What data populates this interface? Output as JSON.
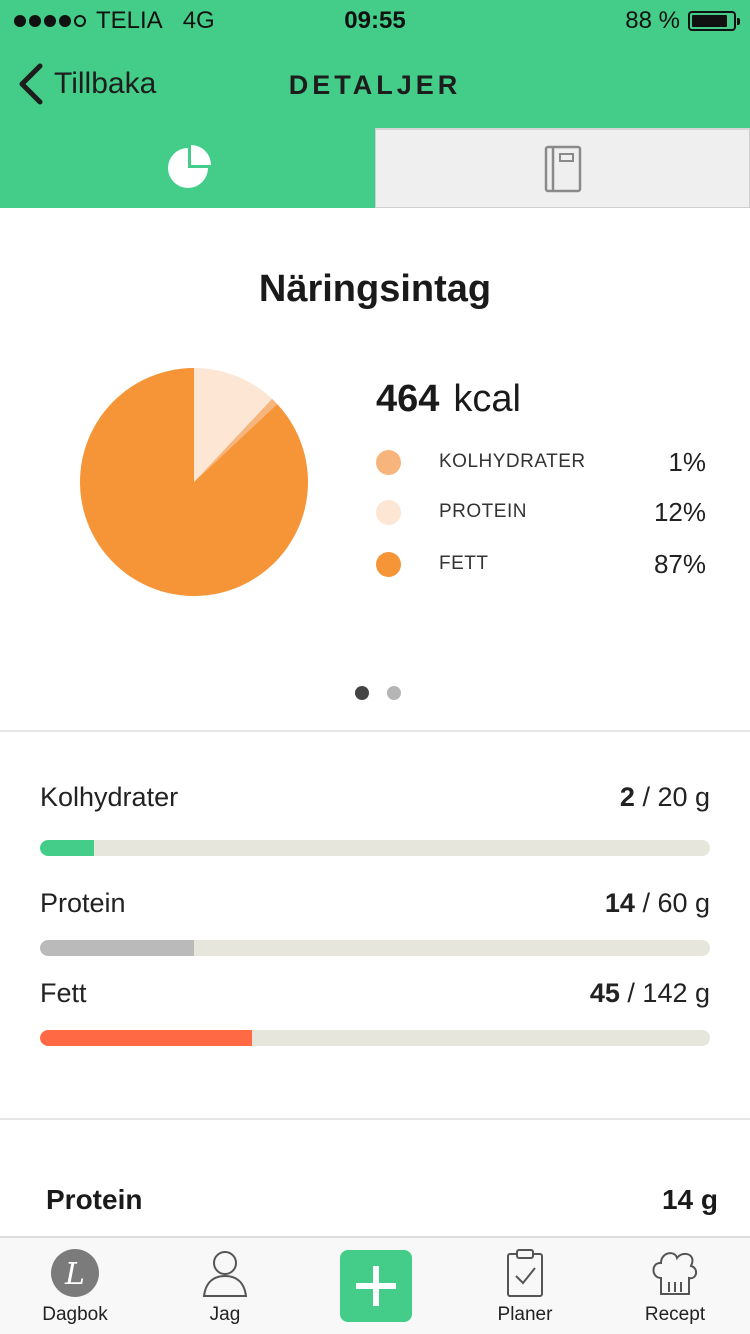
{
  "status_bar": {
    "carrier": "TELIA",
    "network": "4G",
    "time": "09:55",
    "battery": "88 %"
  },
  "nav": {
    "back_label": "Tillbaka",
    "title": "DETALJER"
  },
  "tabs": [
    {
      "icon": "pie-chart-icon",
      "active": true
    },
    {
      "icon": "notebook-icon",
      "active": false
    }
  ],
  "nutrition": {
    "title": "Näringsintag",
    "kcal_value": "464",
    "kcal_unit": "kcal",
    "legend": [
      {
        "label": "KOLHYDRATER",
        "pct": "1%",
        "color": "#f7b57b"
      },
      {
        "label": "PROTEIN",
        "pct": "12%",
        "color": "#fde6d4"
      },
      {
        "label": "FETT",
        "pct": "87%",
        "color": "#f59537"
      }
    ]
  },
  "chart_data": {
    "type": "pie",
    "categories": [
      "KOLHYDRATER",
      "PROTEIN",
      "FETT"
    ],
    "values": [
      1,
      12,
      87
    ],
    "colors": [
      "#f7b57b",
      "#fde6d4",
      "#f59537"
    ],
    "title": "",
    "legend_position": "right"
  },
  "pager": {
    "count": 2,
    "active": 0
  },
  "macros": [
    {
      "name": "Kolhydrater",
      "current": "2",
      "goal": " / 20 g",
      "fraction": 0.08,
      "color": "#43cd88"
    },
    {
      "name": "Protein",
      "current": "14",
      "goal": " / 60 g",
      "fraction": 0.23,
      "color": "#bababa"
    },
    {
      "name": "Fett",
      "current": "45",
      "goal": " / 142 g",
      "fraction": 0.317,
      "color": "#ff6a45"
    }
  ],
  "detail": {
    "label": "Protein",
    "value": "14 g"
  },
  "tabbar": {
    "items": [
      {
        "label": "Dagbok",
        "icon": "diary-icon"
      },
      {
        "label": "Jag",
        "icon": "person-icon"
      },
      {
        "label": "",
        "icon": "plus-icon"
      },
      {
        "label": "Planer",
        "icon": "clipboard-icon"
      },
      {
        "label": "Recept",
        "icon": "chef-hat-icon"
      }
    ]
  }
}
